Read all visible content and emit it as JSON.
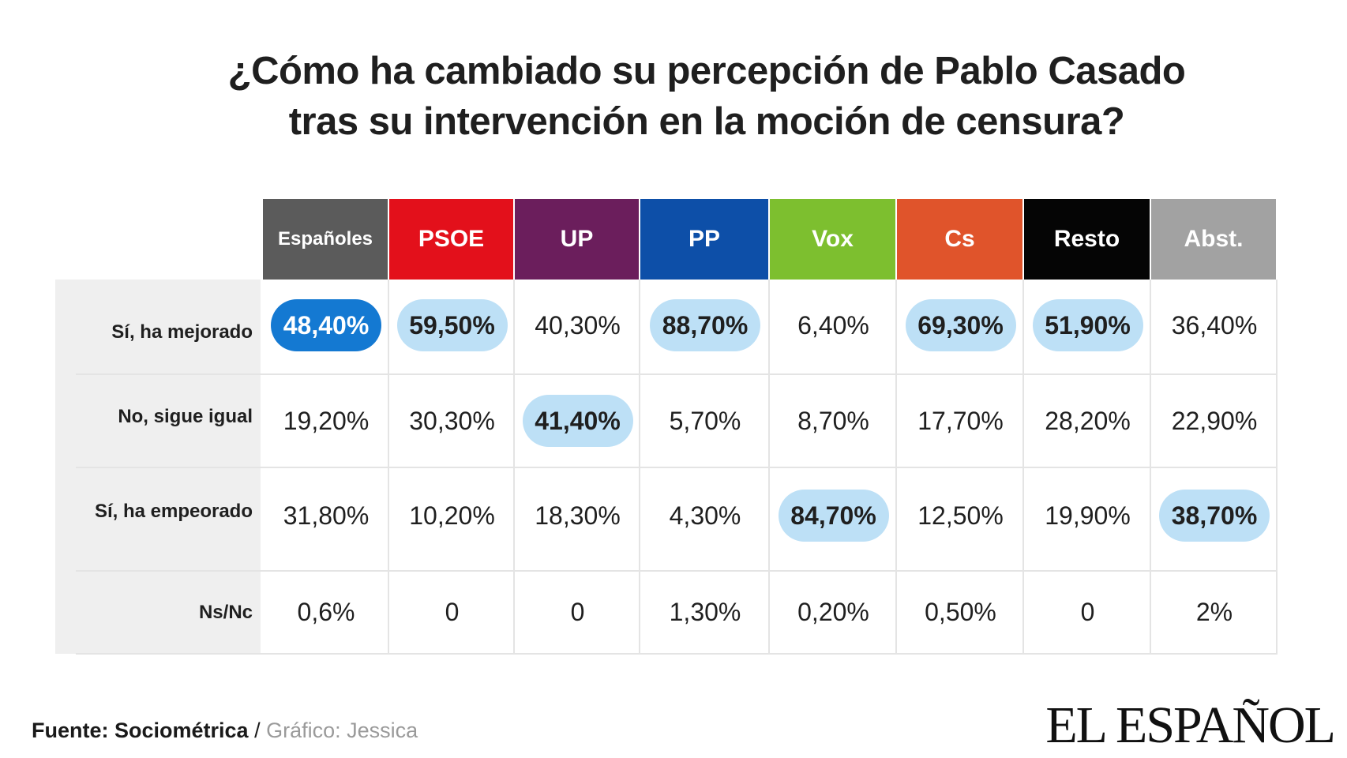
{
  "title": {
    "line1": "¿Cómo ha cambiado su percepción de Pablo Casado",
    "line2": "tras su intervención en la moción de censura?"
  },
  "chart_data": {
    "type": "table",
    "columns": [
      {
        "label": "Españoles",
        "color": "#5b5b5b"
      },
      {
        "label": "PSOE",
        "color": "#e3101b"
      },
      {
        "label": "UP",
        "color": "#6b1e5c"
      },
      {
        "label": "PP",
        "color": "#0d4fa8"
      },
      {
        "label": "Vox",
        "color": "#7dbf2f"
      },
      {
        "label": "Cs",
        "color": "#e0542b"
      },
      {
        "label": "Resto",
        "color": "#050505"
      },
      {
        "label": "Abst.",
        "color": "#a2a2a2"
      }
    ],
    "rows": [
      {
        "label": "Sí, ha mejorado",
        "cells": [
          "48,40%",
          "59,50%",
          "40,30%",
          "88,70%",
          "6,40%",
          "69,30%",
          "51,90%",
          "36,40%"
        ]
      },
      {
        "label": "No, sigue igual",
        "cells": [
          "19,20%",
          "30,30%",
          "41,40%",
          "5,70%",
          "8,70%",
          "17,70%",
          "28,20%",
          "22,90%"
        ]
      },
      {
        "label": "Sí, ha empeorado",
        "cells": [
          "31,80%",
          "10,20%",
          "18,30%",
          "4,30%",
          "84,70%",
          "12,50%",
          "19,90%",
          "38,70%"
        ]
      },
      {
        "label": "Ns/Nc",
        "cells": [
          "0,6%",
          "0",
          "0",
          "1,30%",
          "0,20%",
          "0,50%",
          "0",
          "2%"
        ]
      }
    ],
    "highlights": [
      {
        "row": 0,
        "col": 0,
        "style": "strong"
      },
      {
        "row": 0,
        "col": 1,
        "style": "light"
      },
      {
        "row": 0,
        "col": 3,
        "style": "light"
      },
      {
        "row": 0,
        "col": 5,
        "style": "light"
      },
      {
        "row": 0,
        "col": 6,
        "style": "light"
      },
      {
        "row": 1,
        "col": 2,
        "style": "light"
      },
      {
        "row": 2,
        "col": 4,
        "style": "light"
      },
      {
        "row": 2,
        "col": 7,
        "style": "light"
      }
    ],
    "highlight_colors": {
      "strong": "#1479d2",
      "light": "#bde0f6"
    }
  },
  "footer": {
    "source": "Fuente: Sociométrica",
    "separator": " / ",
    "credit": "Gráfico: Jessica"
  },
  "logo": "EL ESPAÑOL"
}
